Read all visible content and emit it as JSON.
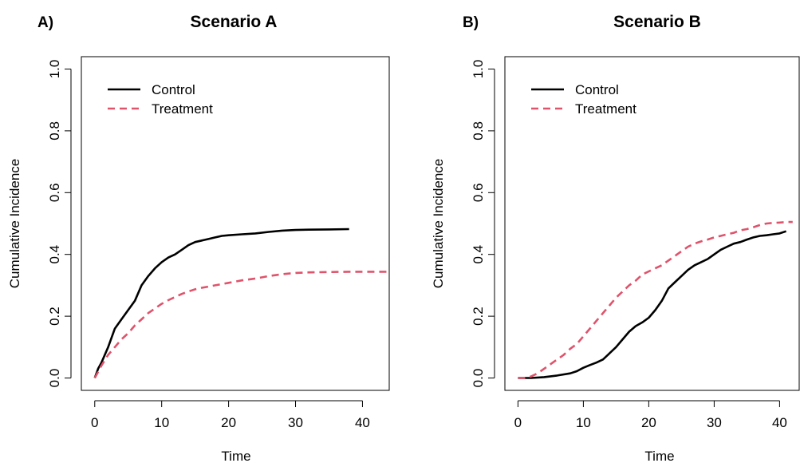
{
  "chart_data": [
    {
      "type": "line",
      "panel_tag": "A)",
      "title": "Scenario A",
      "xlabel": "Time",
      "ylabel": "Cumulative Incidence",
      "xlim": [
        -2,
        44
      ],
      "ylim": [
        -0.04,
        1.04
      ],
      "xticks": [
        0,
        10,
        20,
        30,
        40
      ],
      "xtick_labels": [
        "0",
        "10",
        "20",
        "30",
        "40"
      ],
      "yticks": [
        0,
        0.2,
        0.4,
        0.6,
        0.8,
        1.0
      ],
      "ytick_labels": [
        "0.0",
        "0.2",
        "0.4",
        "0.6",
        "0.8",
        "1.0"
      ],
      "grid": false,
      "legend": "top-left",
      "series": [
        {
          "name": "Control",
          "color": "#000000",
          "dash": "solid",
          "points": [
            [
              0,
              0
            ],
            [
              0.5,
              0.03
            ],
            [
              1,
              0.05
            ],
            [
              2,
              0.1
            ],
            [
              3,
              0.16
            ],
            [
              4,
              0.19
            ],
            [
              5,
              0.22
            ],
            [
              6,
              0.25
            ],
            [
              7,
              0.3
            ],
            [
              8,
              0.33
            ],
            [
              9,
              0.355
            ],
            [
              10,
              0.375
            ],
            [
              11,
              0.39
            ],
            [
              12,
              0.4
            ],
            [
              13,
              0.415
            ],
            [
              14,
              0.43
            ],
            [
              15,
              0.44
            ],
            [
              16,
              0.445
            ],
            [
              17,
              0.45
            ],
            [
              18,
              0.455
            ],
            [
              19,
              0.46
            ],
            [
              20,
              0.462
            ],
            [
              22,
              0.465
            ],
            [
              24,
              0.468
            ],
            [
              26,
              0.473
            ],
            [
              28,
              0.477
            ],
            [
              30,
              0.479
            ],
            [
              32,
              0.48
            ],
            [
              35,
              0.481
            ],
            [
              38,
              0.482
            ]
          ]
        },
        {
          "name": "Treatment",
          "color": "#DF536B",
          "dash": "dashed",
          "points": [
            [
              0,
              0
            ],
            [
              1,
              0.04
            ],
            [
              2,
              0.075
            ],
            [
              3,
              0.1
            ],
            [
              4,
              0.125
            ],
            [
              5,
              0.145
            ],
            [
              6,
              0.17
            ],
            [
              7,
              0.19
            ],
            [
              8,
              0.21
            ],
            [
              9,
              0.225
            ],
            [
              10,
              0.24
            ],
            [
              11,
              0.252
            ],
            [
              12,
              0.262
            ],
            [
              13,
              0.272
            ],
            [
              14,
              0.28
            ],
            [
              15,
              0.287
            ],
            [
              16,
              0.292
            ],
            [
              17,
              0.296
            ],
            [
              18,
              0.3
            ],
            [
              19,
              0.304
            ],
            [
              20,
              0.308
            ],
            [
              22,
              0.316
            ],
            [
              24,
              0.322
            ],
            [
              26,
              0.33
            ],
            [
              28,
              0.336
            ],
            [
              30,
              0.34
            ],
            [
              32,
              0.342
            ],
            [
              35,
              0.343
            ],
            [
              38,
              0.344
            ],
            [
              41,
              0.344
            ],
            [
              44,
              0.344
            ]
          ]
        }
      ]
    },
    {
      "type": "line",
      "panel_tag": "B)",
      "title": "Scenario B",
      "xlabel": "Time",
      "ylabel": "Cumulative Incidence",
      "xlim": [
        -2,
        43
      ],
      "ylim": [
        -0.04,
        1.04
      ],
      "xticks": [
        0,
        10,
        20,
        30,
        40
      ],
      "xtick_labels": [
        "0",
        "10",
        "20",
        "30",
        "40"
      ],
      "yticks": [
        0,
        0.2,
        0.4,
        0.6,
        0.8,
        1.0
      ],
      "ytick_labels": [
        "0.0",
        "0.2",
        "0.4",
        "0.6",
        "0.8",
        "1.0"
      ],
      "grid": false,
      "legend": "top-left",
      "series": [
        {
          "name": "Control",
          "color": "#000000",
          "dash": "solid",
          "points": [
            [
              0,
              0
            ],
            [
              2,
              0
            ],
            [
              4,
              0.003
            ],
            [
              6,
              0.008
            ],
            [
              8,
              0.015
            ],
            [
              9,
              0.022
            ],
            [
              10,
              0.033
            ],
            [
              11,
              0.042
            ],
            [
              12,
              0.05
            ],
            [
              13,
              0.06
            ],
            [
              14,
              0.08
            ],
            [
              15,
              0.1
            ],
            [
              16,
              0.125
            ],
            [
              17,
              0.15
            ],
            [
              18,
              0.168
            ],
            [
              19,
              0.18
            ],
            [
              20,
              0.195
            ],
            [
              21,
              0.22
            ],
            [
              22,
              0.25
            ],
            [
              23,
              0.29
            ],
            [
              24,
              0.31
            ],
            [
              25,
              0.33
            ],
            [
              26,
              0.35
            ],
            [
              27,
              0.365
            ],
            [
              28,
              0.375
            ],
            [
              29,
              0.385
            ],
            [
              30,
              0.4
            ],
            [
              31,
              0.415
            ],
            [
              32,
              0.425
            ],
            [
              33,
              0.435
            ],
            [
              34,
              0.44
            ],
            [
              35,
              0.448
            ],
            [
              36,
              0.455
            ],
            [
              37,
              0.46
            ],
            [
              38,
              0.462
            ],
            [
              39,
              0.465
            ],
            [
              40,
              0.468
            ],
            [
              41,
              0.475
            ]
          ]
        },
        {
          "name": "Treatment",
          "color": "#DF536B",
          "dash": "dashed",
          "points": [
            [
              0,
              0
            ],
            [
              1,
              0
            ],
            [
              2,
              0.005
            ],
            [
              3,
              0.015
            ],
            [
              4,
              0.03
            ],
            [
              5,
              0.045
            ],
            [
              6,
              0.06
            ],
            [
              7,
              0.075
            ],
            [
              8,
              0.095
            ],
            [
              9,
              0.11
            ],
            [
              10,
              0.135
            ],
            [
              11,
              0.16
            ],
            [
              12,
              0.185
            ],
            [
              13,
              0.21
            ],
            [
              14,
              0.235
            ],
            [
              15,
              0.26
            ],
            [
              16,
              0.28
            ],
            [
              17,
              0.3
            ],
            [
              18,
              0.315
            ],
            [
              19,
              0.335
            ],
            [
              20,
              0.345
            ],
            [
              21,
              0.355
            ],
            [
              22,
              0.365
            ],
            [
              23,
              0.38
            ],
            [
              24,
              0.395
            ],
            [
              25,
              0.41
            ],
            [
              26,
              0.425
            ],
            [
              27,
              0.435
            ],
            [
              28,
              0.442
            ],
            [
              29,
              0.448
            ],
            [
              30,
              0.455
            ],
            [
              31,
              0.46
            ],
            [
              32,
              0.465
            ],
            [
              33,
              0.47
            ],
            [
              34,
              0.478
            ],
            [
              35,
              0.482
            ],
            [
              36,
              0.488
            ],
            [
              37,
              0.495
            ],
            [
              38,
              0.5
            ],
            [
              39,
              0.502
            ],
            [
              40,
              0.503
            ],
            [
              41,
              0.505
            ],
            [
              42,
              0.505
            ]
          ]
        }
      ]
    }
  ]
}
